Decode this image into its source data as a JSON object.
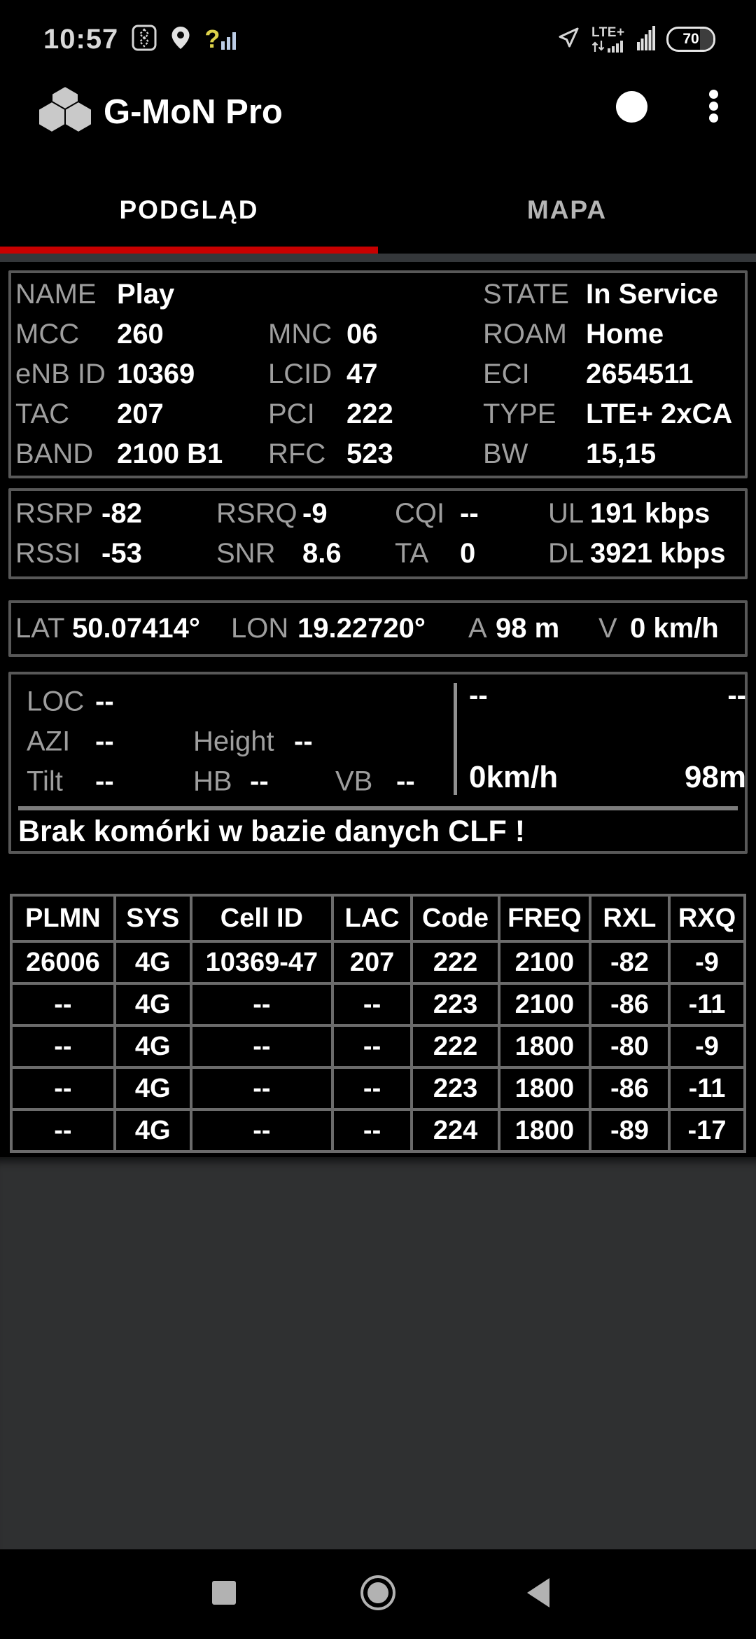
{
  "status_bar": {
    "time": "10:57",
    "network_type": "LTE+",
    "battery_percent": "70",
    "left_icons": [
      "dual-sim-diamond-icon",
      "location-pin-icon",
      "signal-question-icon"
    ],
    "right_icons": [
      "gps-arrow-icon",
      "lte-activity-bars-icon",
      "signal-strength-bars-icon",
      "battery-pill-icon"
    ]
  },
  "header": {
    "app_title": "G-MoN Pro",
    "icons": [
      "hexagon-logo",
      "record-dot",
      "overflow-menu"
    ]
  },
  "tabs": [
    {
      "label": "PODGLĄD",
      "active": true
    },
    {
      "label": "MAPA",
      "active": false
    }
  ],
  "panel_cell": {
    "name_label": "NAME",
    "name_value": "Play",
    "state_label": "STATE",
    "state_value": "In Service",
    "mcc_label": "MCC",
    "mcc_value": "260",
    "mnc_label": "MNC",
    "mnc_value": "06",
    "roam_label": "ROAM",
    "roam_value": "Home",
    "enbid_label": "eNB ID",
    "enbid_value": "10369",
    "lcid_label": "LCID",
    "lcid_value": "47",
    "eci_label": "ECI",
    "eci_value": "2654511",
    "tac_label": "TAC",
    "tac_value": "207",
    "pci_label": "PCI",
    "pci_value": "222",
    "type_label": "TYPE",
    "type_value": "LTE+ 2xCA",
    "band_label": "BAND",
    "band_value": "2100 B1",
    "rfc_label": "RFC",
    "rfc_value": "523",
    "bw_label": "BW",
    "bw_value": "15,15"
  },
  "panel_signal": {
    "rsrp_label": "RSRP",
    "rsrp_value": "-82",
    "rsrq_label": "RSRQ",
    "rsrq_value": "-9",
    "cqi_label": "CQI",
    "cqi_value": "--",
    "ul_label": "UL",
    "ul_value": "191 kbps",
    "rssi_label": "RSSI",
    "rssi_value": "-53",
    "snr_label": "SNR",
    "snr_value": "8.6",
    "ta_label": "TA",
    "ta_value": "0",
    "dl_label": "DL",
    "dl_value": "3921 kbps"
  },
  "panel_gps": {
    "lat_label": "LAT",
    "lat_value": "50.07414°",
    "lon_label": "LON",
    "lon_value": "19.22720°",
    "alt_label": "A",
    "alt_value": "98 m",
    "speed_label": "V",
    "speed_value": "0 km/h"
  },
  "panel_clf": {
    "loc_label": "LOC",
    "loc_value": "--",
    "azi_label": "AZI",
    "azi_value": "--",
    "height_label": "Height",
    "height_value": "--",
    "tilt_label": "Tilt",
    "tilt_value": "--",
    "hb_label": "HB",
    "hb_value": "--",
    "vb_label": "VB",
    "vb_value": "--",
    "compass_left": "--",
    "compass_right": "--",
    "speed": "0km/h",
    "altitude": "98m",
    "message": "Brak komórki w bazie danych CLF !"
  },
  "neighbor_table": {
    "columns": [
      "PLMN",
      "SYS",
      "Cell ID",
      "LAC",
      "Code",
      "FREQ",
      "RXL",
      "RXQ"
    ],
    "rows": [
      [
        "26006",
        "4G",
        "10369-47",
        "207",
        "222",
        "2100",
        "-82",
        "-9"
      ],
      [
        "--",
        "4G",
        "--",
        "--",
        "223",
        "2100",
        "-86",
        "-11"
      ],
      [
        "--",
        "4G",
        "--",
        "--",
        "222",
        "1800",
        "-80",
        "-9"
      ],
      [
        "--",
        "4G",
        "--",
        "--",
        "223",
        "1800",
        "-86",
        "-11"
      ],
      [
        "--",
        "4G",
        "--",
        "--",
        "224",
        "1800",
        "-89",
        "-17"
      ]
    ]
  },
  "nav_bar": {
    "icons": [
      "recents-square",
      "home-circle",
      "back-triangle"
    ]
  },
  "colors": {
    "accent_red": "#c80000",
    "panel_border": "#585858",
    "label_gray": "#9e9e9e",
    "table_border": "#6b6b6b",
    "lower_bg": "#2f3031",
    "nav_icon": "#b2b2b2",
    "status_icon": "#d6d6d6",
    "signal_bar_blue": "#bccde6",
    "question_yellow": "#ddd24a",
    "inactive_tab": "#b5b5b5",
    "divider_gray": "#7c7c7c",
    "tab_divider": "#34373a"
  }
}
